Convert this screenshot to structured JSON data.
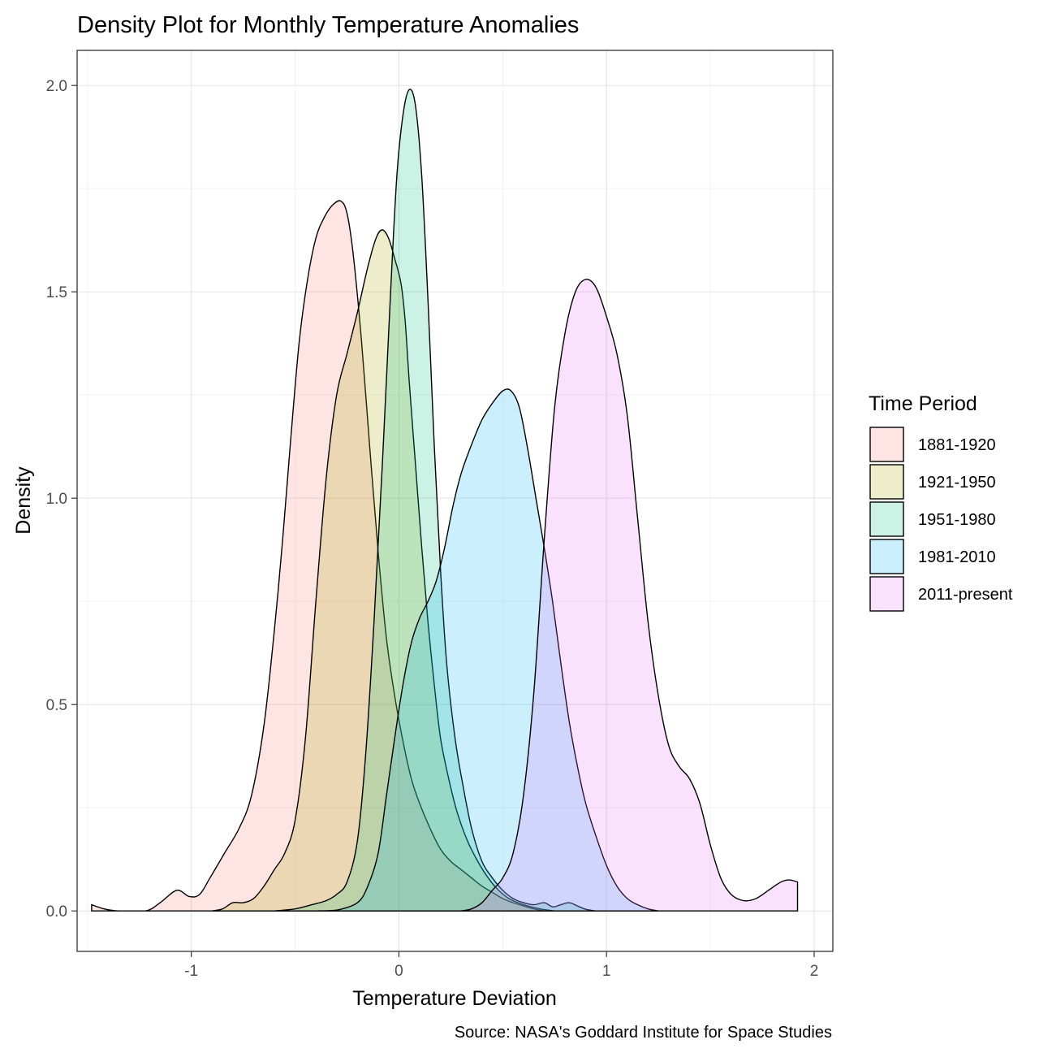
{
  "chart_data": {
    "type": "area",
    "title": "Density Plot for Monthly Temperature Anomalies",
    "xlabel": "Temperature Deviation",
    "ylabel": "Density",
    "caption": "Source: NASA's Goddard Institute for Space Studies",
    "legend_title": "Time Period",
    "legend_position": "right",
    "grid": true,
    "xlim": [
      -1.55,
      2.09
    ],
    "ylim": [
      -0.098,
      2.085
    ],
    "x_ticks": [
      -1,
      0,
      1,
      2
    ],
    "x_tick_labels": [
      "-1",
      "0",
      "1",
      "2"
    ],
    "y_ticks": [
      0,
      0.5,
      1,
      1.5,
      2
    ],
    "y_tick_labels": [
      "0.0",
      "0.5",
      "1.0",
      "1.5",
      "2.0"
    ],
    "series": [
      {
        "name": "1881-1920",
        "color": "#F8766D",
        "alpha": 0.2,
        "points": [
          [
            -1.48,
            0.015
          ],
          [
            -1.42,
            0.005
          ],
          [
            -1.35,
            0.0
          ],
          [
            -1.22,
            0.0
          ],
          [
            -1.15,
            0.02
          ],
          [
            -1.07,
            0.05
          ],
          [
            -1.01,
            0.035
          ],
          [
            -0.96,
            0.04
          ],
          [
            -0.91,
            0.08
          ],
          [
            -0.84,
            0.14
          ],
          [
            -0.77,
            0.2
          ],
          [
            -0.71,
            0.28
          ],
          [
            -0.65,
            0.45
          ],
          [
            -0.6,
            0.68
          ],
          [
            -0.56,
            0.9
          ],
          [
            -0.52,
            1.15
          ],
          [
            -0.48,
            1.38
          ],
          [
            -0.44,
            1.53
          ],
          [
            -0.4,
            1.63
          ],
          [
            -0.36,
            1.68
          ],
          [
            -0.32,
            1.71
          ],
          [
            -0.28,
            1.72
          ],
          [
            -0.25,
            1.69
          ],
          [
            -0.22,
            1.59
          ],
          [
            -0.18,
            1.38
          ],
          [
            -0.14,
            1.12
          ],
          [
            -0.1,
            0.87
          ],
          [
            -0.06,
            0.66
          ],
          [
            -0.02,
            0.52
          ],
          [
            0.02,
            0.41
          ],
          [
            0.06,
            0.32
          ],
          [
            0.1,
            0.26
          ],
          [
            0.15,
            0.2
          ],
          [
            0.2,
            0.15
          ],
          [
            0.25,
            0.12
          ],
          [
            0.3,
            0.1
          ],
          [
            0.35,
            0.08
          ],
          [
            0.4,
            0.06
          ],
          [
            0.45,
            0.045
          ],
          [
            0.5,
            0.03
          ],
          [
            0.55,
            0.02
          ],
          [
            0.6,
            0.012
          ],
          [
            0.65,
            0.005
          ],
          [
            0.7,
            0.0
          ]
        ]
      },
      {
        "name": "1921-1950",
        "color": "#A3A500",
        "alpha": 0.2,
        "points": [
          [
            -0.9,
            0.0
          ],
          [
            -0.85,
            0.005
          ],
          [
            -0.8,
            0.02
          ],
          [
            -0.75,
            0.02
          ],
          [
            -0.7,
            0.03
          ],
          [
            -0.65,
            0.06
          ],
          [
            -0.6,
            0.1
          ],
          [
            -0.55,
            0.14
          ],
          [
            -0.5,
            0.22
          ],
          [
            -0.45,
            0.42
          ],
          [
            -0.4,
            0.75
          ],
          [
            -0.35,
            1.05
          ],
          [
            -0.3,
            1.25
          ],
          [
            -0.25,
            1.35
          ],
          [
            -0.2,
            1.45
          ],
          [
            -0.15,
            1.56
          ],
          [
            -0.11,
            1.63
          ],
          [
            -0.08,
            1.65
          ],
          [
            -0.05,
            1.63
          ],
          [
            -0.02,
            1.58
          ],
          [
            0.01,
            1.52
          ],
          [
            0.03,
            1.43
          ],
          [
            0.05,
            1.28
          ],
          [
            0.08,
            1.08
          ],
          [
            0.11,
            0.88
          ],
          [
            0.14,
            0.7
          ],
          [
            0.17,
            0.55
          ],
          [
            0.2,
            0.42
          ],
          [
            0.24,
            0.32
          ],
          [
            0.28,
            0.24
          ],
          [
            0.33,
            0.17
          ],
          [
            0.38,
            0.12
          ],
          [
            0.43,
            0.08
          ],
          [
            0.48,
            0.05
          ],
          [
            0.53,
            0.03
          ],
          [
            0.6,
            0.015
          ],
          [
            0.68,
            0.005
          ],
          [
            0.75,
            0.0
          ]
        ]
      },
      {
        "name": "1951-1980",
        "color": "#00BF7D",
        "alpha": 0.2,
        "points": [
          [
            -0.6,
            0.0
          ],
          [
            -0.5,
            0.005
          ],
          [
            -0.42,
            0.015
          ],
          [
            -0.35,
            0.025
          ],
          [
            -0.3,
            0.04
          ],
          [
            -0.25,
            0.07
          ],
          [
            -0.2,
            0.17
          ],
          [
            -0.16,
            0.38
          ],
          [
            -0.12,
            0.7
          ],
          [
            -0.08,
            1.08
          ],
          [
            -0.04,
            1.5
          ],
          [
            -0.01,
            1.78
          ],
          [
            0.02,
            1.93
          ],
          [
            0.05,
            1.99
          ],
          [
            0.08,
            1.95
          ],
          [
            0.11,
            1.78
          ],
          [
            0.14,
            1.48
          ],
          [
            0.17,
            1.13
          ],
          [
            0.2,
            0.83
          ],
          [
            0.23,
            0.6
          ],
          [
            0.27,
            0.42
          ],
          [
            0.31,
            0.3
          ],
          [
            0.35,
            0.2
          ],
          [
            0.4,
            0.12
          ],
          [
            0.45,
            0.08
          ],
          [
            0.5,
            0.05
          ],
          [
            0.55,
            0.03
          ],
          [
            0.6,
            0.02
          ],
          [
            0.65,
            0.015
          ],
          [
            0.7,
            0.02
          ],
          [
            0.74,
            0.01
          ],
          [
            0.78,
            0.015
          ],
          [
            0.82,
            0.02
          ],
          [
            0.86,
            0.012
          ],
          [
            0.9,
            0.004
          ],
          [
            0.95,
            0.0
          ]
        ]
      },
      {
        "name": "1981-2010",
        "color": "#00B0F6",
        "alpha": 0.2,
        "points": [
          [
            -0.4,
            0.0
          ],
          [
            -0.3,
            0.002
          ],
          [
            -0.2,
            0.02
          ],
          [
            -0.15,
            0.06
          ],
          [
            -0.1,
            0.14
          ],
          [
            -0.06,
            0.28
          ],
          [
            -0.02,
            0.42
          ],
          [
            0.02,
            0.55
          ],
          [
            0.06,
            0.65
          ],
          [
            0.1,
            0.71
          ],
          [
            0.14,
            0.75
          ],
          [
            0.18,
            0.8
          ],
          [
            0.22,
            0.88
          ],
          [
            0.26,
            0.98
          ],
          [
            0.3,
            1.06
          ],
          [
            0.35,
            1.13
          ],
          [
            0.4,
            1.19
          ],
          [
            0.45,
            1.23
          ],
          [
            0.5,
            1.26
          ],
          [
            0.54,
            1.26
          ],
          [
            0.58,
            1.22
          ],
          [
            0.62,
            1.12
          ],
          [
            0.66,
            1.0
          ],
          [
            0.7,
            0.88
          ],
          [
            0.74,
            0.75
          ],
          [
            0.78,
            0.6
          ],
          [
            0.82,
            0.46
          ],
          [
            0.86,
            0.35
          ],
          [
            0.9,
            0.26
          ],
          [
            0.95,
            0.18
          ],
          [
            1.0,
            0.11
          ],
          [
            1.05,
            0.06
          ],
          [
            1.1,
            0.03
          ],
          [
            1.15,
            0.015
          ],
          [
            1.2,
            0.005
          ],
          [
            1.25,
            0.0
          ]
        ]
      },
      {
        "name": "2011-present",
        "color": "#E76BF3",
        "alpha": 0.2,
        "points": [
          [
            0.3,
            0.0
          ],
          [
            0.35,
            0.005
          ],
          [
            0.4,
            0.02
          ],
          [
            0.45,
            0.05
          ],
          [
            0.5,
            0.08
          ],
          [
            0.55,
            0.14
          ],
          [
            0.6,
            0.28
          ],
          [
            0.65,
            0.53
          ],
          [
            0.7,
            0.9
          ],
          [
            0.75,
            1.22
          ],
          [
            0.8,
            1.4
          ],
          [
            0.85,
            1.5
          ],
          [
            0.9,
            1.53
          ],
          [
            0.95,
            1.51
          ],
          [
            1.0,
            1.44
          ],
          [
            1.05,
            1.35
          ],
          [
            1.1,
            1.2
          ],
          [
            1.15,
            0.95
          ],
          [
            1.2,
            0.7
          ],
          [
            1.25,
            0.52
          ],
          [
            1.3,
            0.4
          ],
          [
            1.35,
            0.35
          ],
          [
            1.4,
            0.32
          ],
          [
            1.45,
            0.26
          ],
          [
            1.5,
            0.16
          ],
          [
            1.55,
            0.08
          ],
          [
            1.6,
            0.04
          ],
          [
            1.66,
            0.025
          ],
          [
            1.72,
            0.03
          ],
          [
            1.78,
            0.05
          ],
          [
            1.84,
            0.07
          ],
          [
            1.88,
            0.075
          ],
          [
            1.92,
            0.07
          ]
        ]
      }
    ]
  }
}
